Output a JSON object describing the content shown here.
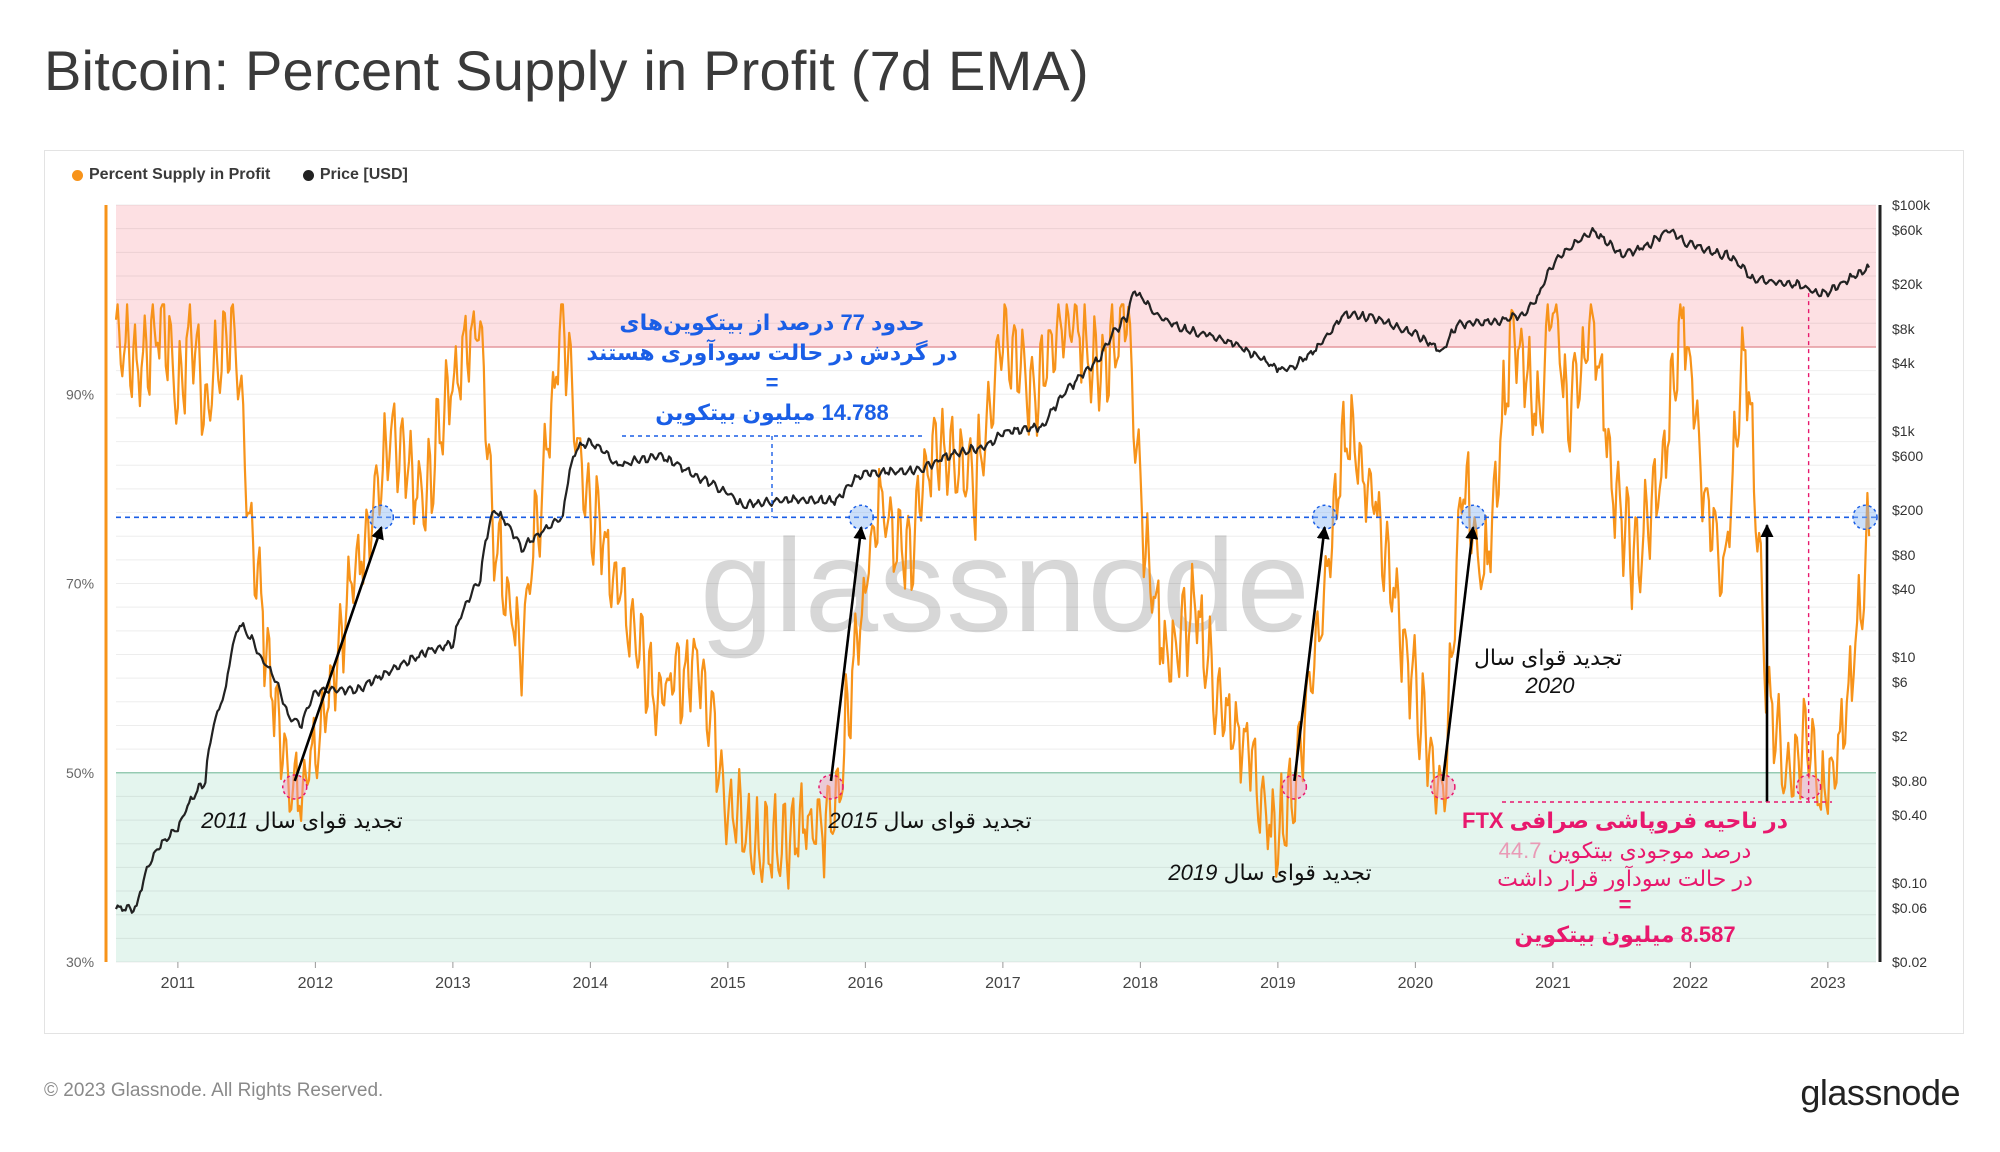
{
  "title": "Bitcoin: Percent Supply in Profit (7d EMA)",
  "legend": [
    {
      "label": "Percent Supply in Profit",
      "color": "#f7931a"
    },
    {
      "label": "Price [USD]",
      "color": "#222222"
    }
  ],
  "watermark": "glassnode",
  "footer": {
    "copyright": "© 2023 Glassnode. All Rights Reserved.",
    "brand": "glassnode"
  },
  "colors": {
    "supply": "#f7931a",
    "price": "#222222",
    "blue": "#1a5ee6",
    "pink": "#e8186d",
    "upper_zone": "#fde0e3",
    "lower_zone": "#e4f5ee"
  },
  "chart_data": {
    "type": "line",
    "title": "Bitcoin: Percent Supply in Profit (7d EMA)",
    "x_range": [
      2010.55,
      2023.35
    ],
    "x_ticks": [
      "2011",
      "2012",
      "2013",
      "2014",
      "2015",
      "2016",
      "2017",
      "2018",
      "2019",
      "2020",
      "2021",
      "2022",
      "2023"
    ],
    "left_axis": {
      "ylim": [
        30,
        110
      ],
      "ticks": [
        "30%",
        "50%",
        "70%",
        "90%"
      ]
    },
    "right_axis": {
      "scale": "log",
      "ylim": [
        0.02,
        100000
      ],
      "ticks": [
        "$0.02",
        "$0.06",
        "$0.10",
        "$0.40",
        "$0.80",
        "$2",
        "$6",
        "$10",
        "$40",
        "$80",
        "$200",
        "$600",
        "$1k",
        "$4k",
        "$8k",
        "$20k",
        "$60k",
        "$100k"
      ]
    },
    "zones": {
      "upper_threshold": 95,
      "lower_threshold": 50
    },
    "reference_line": 77,
    "series": [
      {
        "name": "Percent Supply in Profit",
        "axis": "left",
        "x": [
          2010.55,
          2010.7,
          2010.9,
          2011.0,
          2011.1,
          2011.2,
          2011.4,
          2011.5,
          2011.7,
          2011.85,
          2012.0,
          2012.3,
          2012.55,
          2012.8,
          2012.95,
          2013.2,
          2013.3,
          2013.5,
          2013.8,
          2013.95,
          2014.2,
          2014.5,
          2014.8,
          2015.0,
          2015.2,
          2015.5,
          2015.7,
          2015.8,
          2015.95,
          2016.1,
          2016.3,
          2016.5,
          2016.8,
          2017.0,
          2017.2,
          2017.5,
          2017.7,
          2017.9,
          2018.05,
          2018.2,
          2018.4,
          2018.6,
          2018.8,
          2018.95,
          2019.1,
          2019.3,
          2019.5,
          2019.7,
          2019.9,
          2020.1,
          2020.2,
          2020.35,
          2020.5,
          2020.7,
          2020.9,
          2021.0,
          2021.1,
          2021.3,
          2021.45,
          2021.6,
          2021.8,
          2021.95,
          2022.1,
          2022.25,
          2022.4,
          2022.55,
          2022.7,
          2022.85,
          2022.95,
          2023.05,
          2023.15,
          2023.25,
          2023.3
        ],
        "values": [
          97,
          93,
          98,
          90,
          97,
          89,
          98,
          80,
          57,
          47,
          53,
          72,
          85,
          78,
          90,
          98,
          75,
          63,
          98,
          80,
          70,
          58,
          62,
          47,
          42,
          44,
          44,
          48,
          65,
          80,
          72,
          85,
          80,
          98,
          90,
          98,
          92,
          99,
          72,
          62,
          67,
          56,
          52,
          43,
          47,
          66,
          86,
          79,
          65,
          52,
          47,
          81,
          70,
          96,
          88,
          100,
          88,
          98,
          79,
          72,
          82,
          99,
          80,
          72,
          95,
          61,
          49,
          54,
          47,
          50,
          58,
          70,
          75
        ]
      },
      {
        "name": "Price [USD]",
        "axis": "right",
        "x": [
          2010.55,
          2010.7,
          2010.85,
          2011.0,
          2011.2,
          2011.35,
          2011.45,
          2011.6,
          2011.8,
          2011.9,
          2012.0,
          2012.3,
          2012.5,
          2012.8,
          2013.0,
          2013.2,
          2013.3,
          2013.5,
          2013.8,
          2013.9,
          2014.0,
          2014.2,
          2014.5,
          2014.8,
          2015.0,
          2015.1,
          2015.5,
          2015.8,
          2015.9,
          2016.0,
          2016.4,
          2016.6,
          2016.9,
          2017.0,
          2017.3,
          2017.5,
          2017.7,
          2017.9,
          2017.96,
          2018.1,
          2018.3,
          2018.6,
          2018.9,
          2018.96,
          2019.1,
          2019.3,
          2019.5,
          2019.7,
          2019.9,
          2020.0,
          2020.2,
          2020.3,
          2020.6,
          2020.8,
          2020.9,
          2021.0,
          2021.1,
          2021.3,
          2021.5,
          2021.7,
          2021.85,
          2021.95,
          2022.1,
          2022.3,
          2022.45,
          2022.6,
          2022.8,
          2022.9,
          2023.0,
          2023.15,
          2023.3
        ],
        "values": [
          0.06,
          0.06,
          0.2,
          0.3,
          0.8,
          5,
          20,
          10,
          3,
          2.5,
          5,
          5,
          7,
          11,
          13,
          47,
          200,
          90,
          170,
          700,
          800,
          500,
          600,
          380,
          280,
          220,
          250,
          240,
          360,
          430,
          450,
          600,
          750,
          970,
          1100,
          2500,
          4300,
          10000,
          17500,
          11000,
          8000,
          6500,
          4200,
          3700,
          3500,
          5500,
          11000,
          10000,
          8000,
          7200,
          5000,
          8700,
          9300,
          10700,
          16000,
          29000,
          40000,
          58000,
          35000,
          45000,
          60000,
          48000,
          40000,
          35000,
          22000,
          21000,
          19500,
          17000,
          16600,
          22000,
          28000
        ]
      }
    ],
    "annotations": [
      {
        "id": "blue_note",
        "lines": [
          "حدود 77 درصد از بیتکوین‌های",
          "در گردش در حالت سودآوری هستند",
          "=",
          "14.788 میلیون بیتکوین"
        ],
        "color": "#1a5ee6"
      },
      {
        "id": "renewal_2011",
        "prefix": "تجدید قوای سال",
        "year": "2011"
      },
      {
        "id": "renewal_2015",
        "prefix": "تجدید قوای سال",
        "year": "2015"
      },
      {
        "id": "renewal_2019",
        "prefix": "تجدید قوای سال",
        "year": "2019"
      },
      {
        "id": "renewal_2020",
        "prefix": "تجدید قوای سال",
        "year": "2020"
      },
      {
        "id": "ftx_note",
        "color": "#e8186d",
        "line1": "در ناحیه فروپاشی صرافی FTX",
        "pct_value": "44.7",
        "pct_text": "درصد موجودی بیتکوین",
        "line3": "در حالت سودآور قرار داشت",
        "eq": "=",
        "line5": "8.587 میلیون بیتکوین"
      }
    ]
  }
}
